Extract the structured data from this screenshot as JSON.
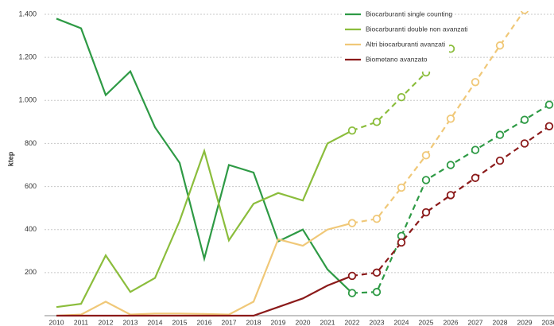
{
  "chart_data": {
    "type": "line",
    "y_label": "ktep",
    "categories": [
      "2010",
      "2011",
      "2012",
      "2013",
      "2014",
      "2015",
      "2016",
      "2017",
      "2018",
      "2019",
      "2020",
      "2021",
      "2022",
      "2023",
      "2024",
      "2025",
      "2026",
      "2027",
      "2028",
      "2029",
      "2030"
    ],
    "dashed_from": "2022",
    "ylim": [
      0,
      1400
    ],
    "yticks": [
      200,
      400,
      600,
      800,
      {
        "value": 1000,
        "label": "1.000"
      },
      {
        "value": 1200,
        "label": "1.200"
      },
      {
        "value": 1400,
        "label": "1.400"
      }
    ],
    "grid": true,
    "legend": "top-right",
    "series": [
      {
        "name": "Biocarburanti single counting",
        "color": "#2e9a45",
        "values": [
          1380,
          1335,
          1025,
          1135,
          875,
          710,
          265,
          700,
          665,
          345,
          400,
          215,
          105,
          110,
          370,
          630,
          700,
          770,
          840,
          910,
          980
        ]
      },
      {
        "name": "Biocarburanti double non avanzati",
        "color": "#8bbd3c",
        "values": [
          40,
          55,
          280,
          110,
          175,
          440,
          765,
          350,
          520,
          570,
          535,
          800,
          860,
          900,
          1015,
          1130,
          1240,
          null,
          null,
          null,
          null
        ]
      },
      {
        "name": "Altri biocarburanti avanzati",
        "color": "#f0c878",
        "values": [
          0,
          5,
          65,
          5,
          10,
          10,
          8,
          5,
          65,
          355,
          325,
          400,
          430,
          450,
          595,
          745,
          915,
          1085,
          1255,
          1420,
          null
        ]
      },
      {
        "name": "Biometano avanzato",
        "color": "#8b1a1a",
        "values": [
          0,
          0,
          0,
          0,
          0,
          0,
          0,
          0,
          0,
          40,
          80,
          140,
          185,
          200,
          340,
          480,
          560,
          640,
          720,
          800,
          880
        ]
      }
    ]
  }
}
